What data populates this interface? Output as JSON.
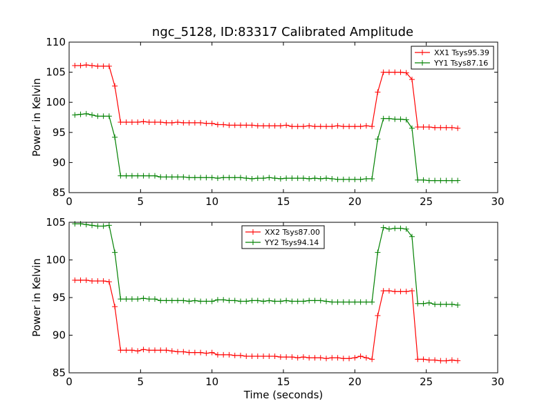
{
  "title": "ngc_5128, ID:83317 Calibrated Amplitude",
  "chart_data": [
    {
      "type": "line",
      "title": "ngc_5128, ID:83317 Calibrated Amplitude",
      "xlabel": "",
      "ylabel": "Power in Kelvin",
      "xlim": [
        0,
        30
      ],
      "ylim": [
        85,
        110
      ],
      "xticks": [
        "0",
        "5",
        "10",
        "15",
        "20",
        "25",
        "30"
      ],
      "yticks": [
        "85",
        "90",
        "95",
        "100",
        "105",
        "110"
      ],
      "grid": false,
      "legend_position": "top-right",
      "x": [
        0.4,
        0.8,
        1.2,
        1.6,
        2.0,
        2.4,
        2.8,
        3.2,
        3.6,
        4.0,
        4.4,
        4.8,
        5.2,
        5.6,
        6.0,
        6.4,
        6.8,
        7.2,
        7.6,
        8.0,
        8.4,
        8.8,
        9.2,
        9.6,
        10.0,
        10.4,
        10.8,
        11.2,
        11.6,
        12.0,
        12.4,
        12.8,
        13.2,
        13.6,
        14.0,
        14.4,
        14.8,
        15.2,
        15.6,
        16.0,
        16.4,
        16.8,
        17.2,
        17.6,
        18.0,
        18.4,
        18.8,
        19.2,
        19.6,
        20.0,
        20.4,
        20.8,
        21.2,
        21.6,
        22.0,
        22.4,
        22.8,
        23.2,
        23.6,
        24.0,
        24.4,
        24.8,
        25.2,
        25.6,
        26.0,
        26.4,
        26.8,
        27.2
      ],
      "series": [
        {
          "name": "XX1 Tsys95.39",
          "color": "#ff0000",
          "values": [
            106.1,
            106.1,
            106.2,
            106.1,
            106.0,
            106.0,
            106.0,
            102.7,
            96.7,
            96.7,
            96.7,
            96.7,
            96.8,
            96.7,
            96.7,
            96.7,
            96.6,
            96.6,
            96.7,
            96.6,
            96.6,
            96.6,
            96.6,
            96.5,
            96.5,
            96.3,
            96.3,
            96.2,
            96.2,
            96.2,
            96.2,
            96.2,
            96.1,
            96.1,
            96.1,
            96.1,
            96.1,
            96.2,
            96.0,
            96.0,
            96.0,
            96.1,
            96.0,
            96.0,
            96.0,
            96.0,
            96.1,
            96.0,
            96.0,
            96.0,
            96.0,
            96.1,
            96.0,
            101.7,
            105.0,
            105.0,
            105.0,
            105.0,
            104.9,
            103.8,
            95.9,
            95.9,
            95.9,
            95.8,
            95.8,
            95.8,
            95.8,
            95.7
          ]
        },
        {
          "name": "YY1 Tsys87.16",
          "color": "#008000",
          "values": [
            97.9,
            98.0,
            98.1,
            97.9,
            97.7,
            97.7,
            97.7,
            94.2,
            87.8,
            87.8,
            87.8,
            87.8,
            87.8,
            87.8,
            87.8,
            87.6,
            87.6,
            87.6,
            87.6,
            87.6,
            87.5,
            87.5,
            87.5,
            87.5,
            87.5,
            87.4,
            87.5,
            87.5,
            87.5,
            87.5,
            87.4,
            87.3,
            87.4,
            87.4,
            87.5,
            87.4,
            87.3,
            87.4,
            87.4,
            87.4,
            87.4,
            87.3,
            87.4,
            87.3,
            87.4,
            87.3,
            87.2,
            87.2,
            87.2,
            87.2,
            87.2,
            87.3,
            87.3,
            93.9,
            97.3,
            97.3,
            97.2,
            97.2,
            97.1,
            95.7,
            87.1,
            87.1,
            87.0,
            87.0,
            87.0,
            87.0,
            87.0,
            87.0
          ]
        }
      ]
    },
    {
      "type": "line",
      "title": "",
      "xlabel": "Time (seconds)",
      "ylabel": "Power in Kelvin",
      "xlim": [
        0,
        30
      ],
      "ylim": [
        85,
        105
      ],
      "xticks": [
        "0",
        "5",
        "10",
        "15",
        "20",
        "25",
        "30"
      ],
      "yticks": [
        "85",
        "90",
        "95",
        "100",
        "105"
      ],
      "grid": false,
      "legend_position": "top-center",
      "x": [
        0.4,
        0.8,
        1.2,
        1.6,
        2.0,
        2.4,
        2.8,
        3.2,
        3.6,
        4.0,
        4.4,
        4.8,
        5.2,
        5.6,
        6.0,
        6.4,
        6.8,
        7.2,
        7.6,
        8.0,
        8.4,
        8.8,
        9.2,
        9.6,
        10.0,
        10.4,
        10.8,
        11.2,
        11.6,
        12.0,
        12.4,
        12.8,
        13.2,
        13.6,
        14.0,
        14.4,
        14.8,
        15.2,
        15.6,
        16.0,
        16.4,
        16.8,
        17.2,
        17.6,
        18.0,
        18.4,
        18.8,
        19.2,
        19.6,
        20.0,
        20.4,
        20.8,
        21.2,
        21.6,
        22.0,
        22.4,
        22.8,
        23.2,
        23.6,
        24.0,
        24.4,
        24.8,
        25.2,
        25.6,
        26.0,
        26.4,
        26.8,
        27.2
      ],
      "series": [
        {
          "name": "XX2 Tsys87.00",
          "color": "#ff0000",
          "values": [
            97.3,
            97.3,
            97.3,
            97.2,
            97.2,
            97.2,
            97.1,
            93.8,
            88.0,
            88.0,
            88.0,
            87.9,
            88.1,
            88.0,
            88.0,
            88.0,
            88.0,
            87.9,
            87.8,
            87.8,
            87.7,
            87.7,
            87.7,
            87.6,
            87.7,
            87.4,
            87.4,
            87.4,
            87.3,
            87.3,
            87.2,
            87.2,
            87.2,
            87.2,
            87.2,
            87.2,
            87.1,
            87.1,
            87.1,
            87.0,
            87.1,
            87.0,
            87.0,
            87.0,
            86.9,
            87.0,
            87.0,
            86.9,
            86.9,
            87.0,
            87.2,
            87.0,
            86.8,
            92.6,
            95.9,
            95.9,
            95.8,
            95.8,
            95.8,
            95.9,
            86.8,
            86.8,
            86.7,
            86.7,
            86.6,
            86.6,
            86.7,
            86.6
          ]
        },
        {
          "name": "YY2 Tsys94.14",
          "color": "#008000",
          "values": [
            104.8,
            104.8,
            104.7,
            104.6,
            104.5,
            104.5,
            104.6,
            101.0,
            94.8,
            94.8,
            94.8,
            94.8,
            94.9,
            94.8,
            94.8,
            94.6,
            94.6,
            94.6,
            94.6,
            94.6,
            94.5,
            94.6,
            94.5,
            94.5,
            94.5,
            94.7,
            94.7,
            94.6,
            94.6,
            94.5,
            94.5,
            94.6,
            94.6,
            94.5,
            94.6,
            94.5,
            94.5,
            94.6,
            94.5,
            94.5,
            94.5,
            94.6,
            94.6,
            94.6,
            94.5,
            94.4,
            94.4,
            94.4,
            94.4,
            94.4,
            94.4,
            94.4,
            94.4,
            101.0,
            104.3,
            104.1,
            104.2,
            104.2,
            104.1,
            103.1,
            94.2,
            94.2,
            94.3,
            94.1,
            94.1,
            94.1,
            94.1,
            94.0
          ]
        }
      ]
    }
  ]
}
